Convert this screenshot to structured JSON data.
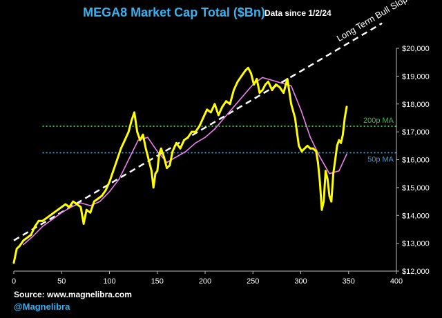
{
  "chart_data": {
    "type": "line",
    "title": "MEGA8 Market Cap Total ($Bn)",
    "subtitle": "Data since 1/2/24",
    "xlim": [
      0,
      400
    ],
    "ylim": [
      12000,
      20000
    ],
    "x_ticks": [
      0,
      50,
      100,
      150,
      200,
      250,
      300,
      350,
      400
    ],
    "x_tick_labels": [
      "0",
      "50",
      "100",
      "150",
      "200",
      "250",
      "300",
      "350",
      "400"
    ],
    "y_ticks": [
      12000,
      13000,
      14000,
      15000,
      16000,
      17000,
      18000,
      19000,
      20000
    ],
    "y_tick_labels": [
      "$12,000",
      "$13,000",
      "$14,000",
      "$15,000",
      "$16,000",
      "$17,000",
      "$18,000",
      "$19,000",
      "$20,000"
    ],
    "grid": false,
    "series": [
      {
        "name": "Market Cap",
        "color": "#ffff00",
        "style": "solid",
        "x": [
          0,
          3,
          6,
          10,
          14,
          18,
          22,
          26,
          30,
          34,
          38,
          42,
          46,
          50,
          54,
          58,
          62,
          66,
          70,
          73,
          76,
          80,
          84,
          88,
          92,
          96,
          100,
          104,
          108,
          112,
          116,
          120,
          123,
          126,
          129,
          132,
          135,
          138,
          141,
          144,
          146,
          148,
          150,
          152,
          154,
          157,
          160,
          163,
          166,
          170,
          174,
          178,
          182,
          186,
          190,
          194,
          198,
          202,
          206,
          210,
          214,
          218,
          222,
          226,
          230,
          234,
          238,
          242,
          245,
          248,
          251,
          254,
          257,
          260,
          263,
          266,
          270,
          274,
          278,
          282,
          286,
          290,
          294,
          298,
          301,
          304,
          307,
          310,
          313,
          316,
          318,
          320,
          322,
          324,
          326,
          328,
          330,
          332,
          334,
          336,
          338,
          340,
          342,
          344,
          346,
          348
        ],
        "values": [
          12300,
          12800,
          12900,
          13100,
          13200,
          13300,
          13600,
          13800,
          13800,
          13900,
          14000,
          14100,
          14200,
          14300,
          14400,
          14300,
          14500,
          14400,
          14300,
          13700,
          14200,
          14100,
          14500,
          14600,
          14700,
          14900,
          15200,
          15600,
          16000,
          16400,
          16700,
          17000,
          17400,
          17700,
          17000,
          16700,
          16900,
          16400,
          16000,
          15600,
          15000,
          15500,
          15600,
          16200,
          16400,
          16100,
          15700,
          15800,
          16300,
          16600,
          16400,
          16700,
          16800,
          17000,
          17000,
          17200,
          17500,
          17800,
          17700,
          18000,
          17600,
          17900,
          18100,
          18000,
          18500,
          18800,
          19000,
          19200,
          19300,
          19100,
          18700,
          18900,
          18400,
          18500,
          18700,
          18800,
          18500,
          18700,
          18600,
          18400,
          18900,
          18000,
          17500,
          16500,
          16300,
          16400,
          16500,
          16400,
          16400,
          16300,
          15900,
          15200,
          14200,
          14500,
          15600,
          15300,
          14700,
          14500,
          15500,
          16000,
          16500,
          16700,
          16600,
          16900,
          17500,
          17900
        ]
      },
      {
        "name": "50p MA",
        "color": "#ee82ee",
        "style": "solid",
        "x": [
          10,
          20,
          30,
          40,
          50,
          60,
          70,
          80,
          90,
          100,
          110,
          120,
          130,
          140,
          150,
          160,
          170,
          180,
          190,
          200,
          210,
          220,
          230,
          240,
          250,
          260,
          270,
          280,
          290,
          300,
          310,
          320,
          330,
          340,
          348
        ],
        "values": [
          12950,
          13250,
          13600,
          13850,
          14100,
          14300,
          14450,
          14350,
          14500,
          14850,
          15300,
          16000,
          16700,
          16800,
          16300,
          15900,
          16100,
          16300,
          16600,
          16800,
          17100,
          17500,
          17900,
          18300,
          18700,
          18950,
          18850,
          18750,
          18650,
          17800,
          16800,
          16100,
          15500,
          15600,
          16200
        ]
      }
    ],
    "reference_lines": [
      {
        "name": "200p MA",
        "label": "200p MA",
        "y": 17200,
        "color": "#3fbf3f",
        "style": "dotted"
      },
      {
        "name": "50p MA",
        "label": "50p MA",
        "y": 16250,
        "color": "#3aa0d8",
        "style": "dotted"
      }
    ],
    "trend_line": {
      "name": "Long Term Bull Slope",
      "label": "Long Term Bull Slope",
      "color": "#ffffff",
      "style": "dashed",
      "x": [
        0,
        385
      ],
      "y": [
        13100,
        20900
      ]
    },
    "annotations": {
      "source": "Source: www.magnelibra.com",
      "handle": "@Magnelibra"
    }
  },
  "colors": {
    "background": "#000000",
    "title": "#3ab0ee",
    "subtitle": "#ffffff",
    "axis_text": "#ffffff",
    "axis_line": "#cccccc",
    "source": "#ffffff",
    "handle": "#3ab0ee"
  }
}
